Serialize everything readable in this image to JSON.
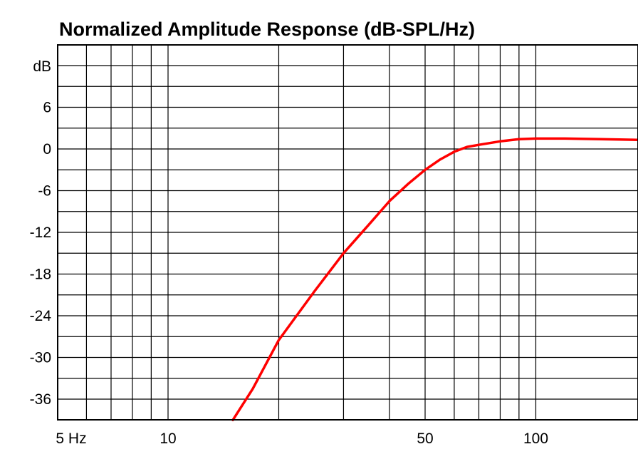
{
  "chart_data": {
    "type": "line",
    "title": "Normalized Amplitude Response (dB-SPL/Hz)",
    "xlabel": "",
    "ylabel": "",
    "x_scale": "log",
    "xlim": [
      5,
      200
    ],
    "ylim": [
      -39,
      12
    ],
    "grid": true,
    "y_unit_label": "dB",
    "y_ticks": [
      6,
      0,
      -6,
      -12,
      -18,
      -24,
      -30,
      -36
    ],
    "y_tick_labels": [
      "6",
      "0",
      "-6",
      "-12",
      "-18",
      "-24",
      "-30",
      "-36"
    ],
    "y_grid_lines": [
      12,
      9,
      6,
      3,
      0,
      -3,
      -6,
      -9,
      -12,
      -15,
      -18,
      -21,
      -24,
      -27,
      -30,
      -33,
      -36
    ],
    "x_ticks": [
      5,
      10,
      50,
      100
    ],
    "x_tick_labels": [
      "5 Hz",
      "10",
      "50",
      "100"
    ],
    "x_grid_lines": [
      6,
      7,
      8,
      9,
      10,
      20,
      30,
      40,
      50,
      60,
      70,
      80,
      90,
      100
    ],
    "series": [
      {
        "color": "#ff0000",
        "x": [
          15,
          17,
          20,
          25,
          30,
          35,
          40,
          45,
          50,
          55,
          60,
          65,
          70,
          80,
          90,
          100,
          120,
          150,
          200
        ],
        "y": [
          -39,
          -34.5,
          -27.5,
          -20.5,
          -15,
          -11,
          -7.5,
          -5,
          -3,
          -1.5,
          -0.4,
          0.3,
          0.6,
          1.1,
          1.4,
          1.5,
          1.5,
          1.4,
          1.3
        ]
      }
    ]
  }
}
